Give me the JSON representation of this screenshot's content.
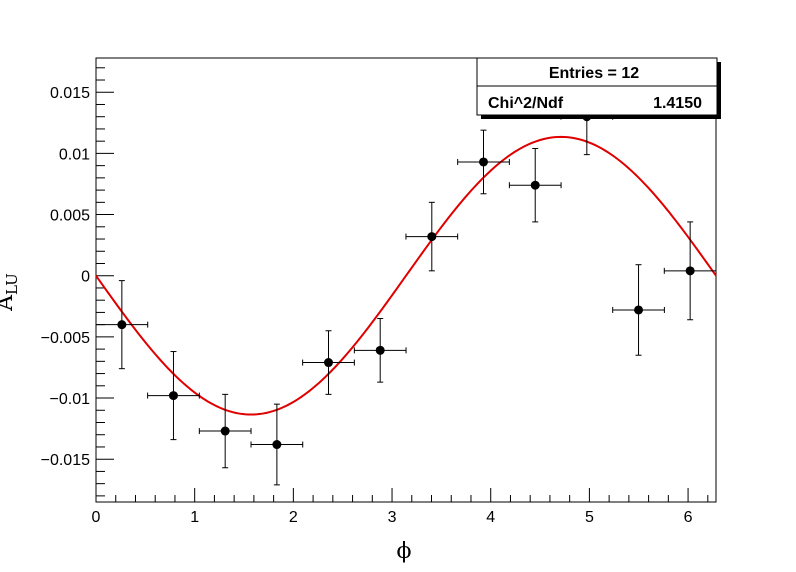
{
  "chart_data": {
    "type": "scatter",
    "xlabel": "ϕ",
    "ylabel": "A",
    "ylabel_sub": "LU",
    "xlim": [
      0,
      6.283
    ],
    "ylim": [
      -0.0185,
      0.0178
    ],
    "x_ticks": [
      0,
      1,
      2,
      3,
      4,
      5,
      6
    ],
    "x_tick_labels": [
      "0",
      "1",
      "2",
      "3",
      "4",
      "5",
      "6"
    ],
    "y_ticks": [
      -0.015,
      -0.01,
      -0.005,
      0,
      0.005,
      0.01,
      0.015
    ],
    "y_tick_labels": [
      "−0.015",
      "−0.01",
      "−0.005",
      "0",
      "0.005",
      "0.01",
      "0.015"
    ],
    "points": [
      {
        "x": 0.262,
        "y": -0.004,
        "xerr": 0.262,
        "yerr": 0.0036
      },
      {
        "x": 0.785,
        "y": -0.0098,
        "xerr": 0.262,
        "yerr": 0.0036
      },
      {
        "x": 1.309,
        "y": -0.0127,
        "xerr": 0.262,
        "yerr": 0.003
      },
      {
        "x": 1.833,
        "y": -0.0138,
        "xerr": 0.262,
        "yerr": 0.0033
      },
      {
        "x": 2.356,
        "y": -0.0071,
        "xerr": 0.262,
        "yerr": 0.0026
      },
      {
        "x": 2.88,
        "y": -0.0061,
        "xerr": 0.262,
        "yerr": 0.0026
      },
      {
        "x": 3.403,
        "y": 0.0032,
        "xerr": 0.262,
        "yerr": 0.0028
      },
      {
        "x": 3.927,
        "y": 0.0093,
        "xerr": 0.262,
        "yerr": 0.0026
      },
      {
        "x": 4.451,
        "y": 0.0074,
        "xerr": 0.262,
        "yerr": 0.003
      },
      {
        "x": 4.974,
        "y": 0.013,
        "xerr": 0.262,
        "yerr": 0.0031
      },
      {
        "x": 5.498,
        "y": -0.0028,
        "xerr": 0.262,
        "yerr": 0.0037
      },
      {
        "x": 6.021,
        "y": 0.0004,
        "xerr": 0.262,
        "yerr": 0.004
      }
    ],
    "fit": {
      "function": "-A*sin(x)",
      "amplitude": 0.01135,
      "color": "#e00000"
    },
    "legend_position": "top-right"
  },
  "stats_box": {
    "entries_text": "Entries = 12",
    "chi2_label": "Chi^2/Ndf",
    "chi2_value": "1.4150"
  },
  "colors": {
    "marker": "#000000",
    "fit": "#e00000",
    "axis": "#000000"
  }
}
